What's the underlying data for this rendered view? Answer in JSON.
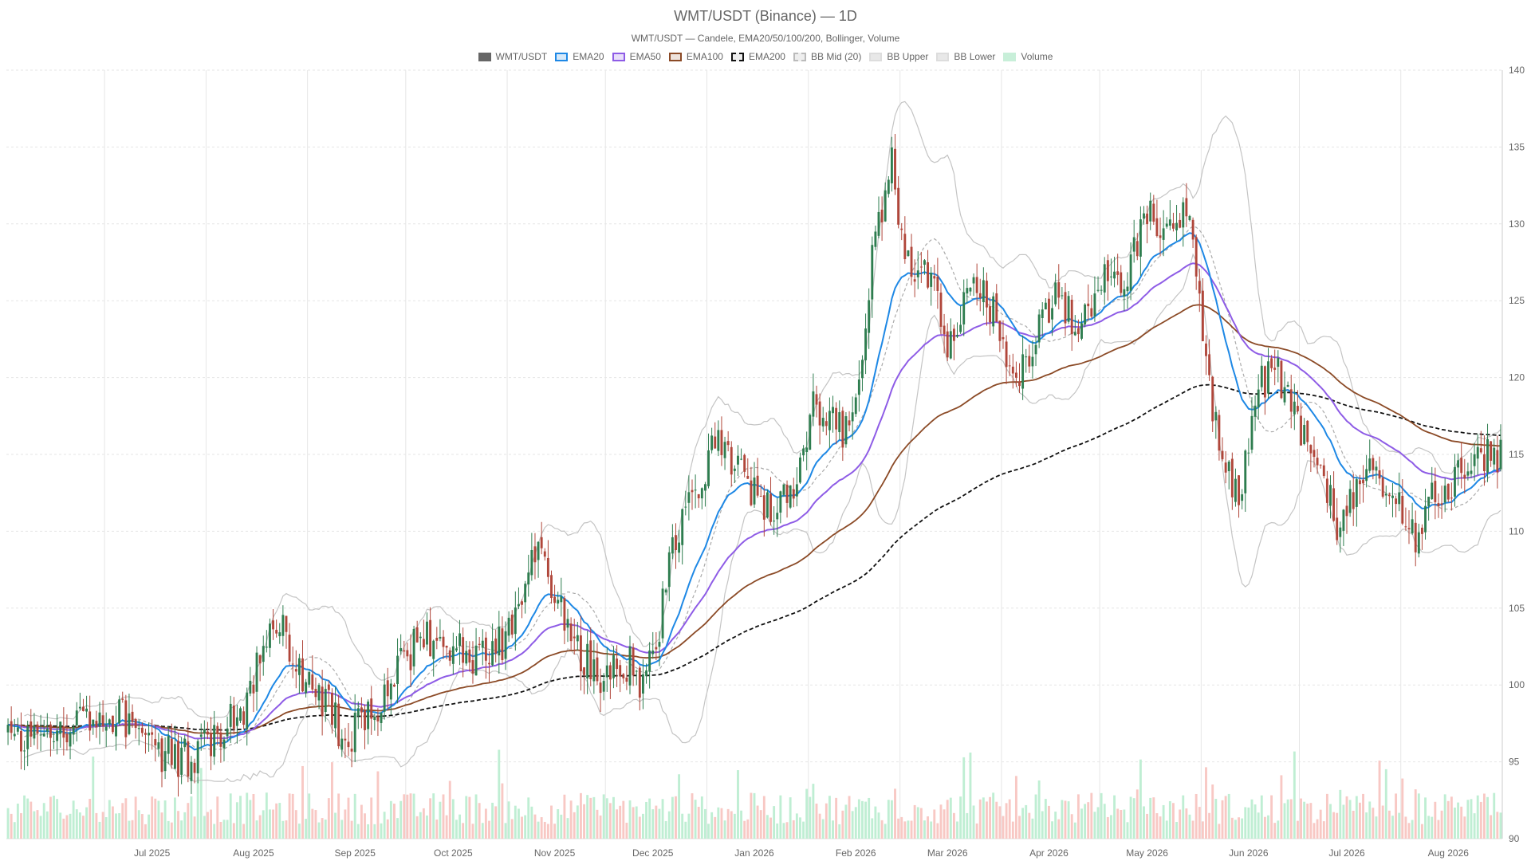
{
  "chart_data": {
    "type": "candlestick",
    "title": "WMT/USDT (Binance) — 1D",
    "subtitle": "WMT/USDT — Candele, EMA20/50/100/200, Bollinger, Volume",
    "legend": [
      {
        "label": "WMT/USDT",
        "color": "#666666",
        "fill": "#666666",
        "dash": false
      },
      {
        "label": "EMA20",
        "color": "#1e88e5",
        "fill": "#d6e9fa",
        "dash": false
      },
      {
        "label": "EMA50",
        "color": "#8e5ce6",
        "fill": "#e8defa",
        "dash": false
      },
      {
        "label": "EMA100",
        "color": "#8b4a26",
        "fill": "#eee3dc",
        "dash": false
      },
      {
        "label": "EMA200",
        "color": "#111111",
        "fill": "#eeeeee",
        "dash": true
      },
      {
        "label": "BB Mid (20)",
        "color": "#bbbbbb",
        "fill": "#eeeeee",
        "dash": true
      },
      {
        "label": "BB Upper",
        "color": "#dddddd",
        "fill": "#e8e8e8",
        "dash": false
      },
      {
        "label": "BB Lower",
        "color": "#dddddd",
        "fill": "#e8e8e8",
        "dash": false
      },
      {
        "label": "Volume",
        "color": "#c8efd9",
        "fill": "#c8efd9",
        "dash": false
      }
    ],
    "colors": {
      "up": "#2e7d4f",
      "down": "#b0463a",
      "ema20": "#1e88e5",
      "ema50": "#8e5ce6",
      "ema100": "#8b4a26",
      "ema200": "#111111",
      "bb_mid": "#aaaaaa",
      "bb_band": "#c4c4c4",
      "vol_up": "#bfeed3",
      "vol_down": "#f8c8c4",
      "grid": "#e6e6e6"
    },
    "y_axis": {
      "min": 90,
      "max": 140,
      "ticks": [
        90,
        95,
        100,
        105,
        110,
        115,
        120,
        125,
        130,
        135,
        140
      ],
      "side": "right"
    },
    "x_axis": {
      "start": "2025-06-01",
      "end": "2026-08-31",
      "month_labels": [
        "Jul 2025",
        "Aug 2025",
        "Sep 2025",
        "Oct 2025",
        "Nov 2025",
        "Dec 2025",
        "Jan 2026",
        "Feb 2026",
        "Mar 2026",
        "Apr 2026",
        "May 2026",
        "Jun 2026",
        "Jul 2026",
        "Aug 2026"
      ],
      "month_label_dates": [
        "2025-07-15",
        "2025-08-15",
        "2025-09-15",
        "2025-10-15",
        "2025-11-15",
        "2025-12-15",
        "2026-01-15",
        "2026-02-15",
        "2026-03-15",
        "2026-04-15",
        "2026-05-15",
        "2026-06-15",
        "2026-07-15",
        "2026-08-15"
      ]
    },
    "grid": true,
    "close_anchors": [
      [
        "2025-06-01",
        97.4
      ],
      [
        "2025-06-06",
        96.0
      ],
      [
        "2025-06-12",
        96.8
      ],
      [
        "2025-06-18",
        97.6
      ],
      [
        "2025-06-26",
        97.2
      ],
      [
        "2025-07-05",
        97.9
      ],
      [
        "2025-07-12",
        97.0
      ],
      [
        "2025-07-18",
        95.5
      ],
      [
        "2025-07-26",
        95.2
      ],
      [
        "2025-08-05",
        97.0
      ],
      [
        "2025-08-12",
        98.5
      ],
      [
        "2025-08-18",
        102.8
      ],
      [
        "2025-08-24",
        103.6
      ],
      [
        "2025-08-30",
        100.0
      ],
      [
        "2025-09-06",
        98.8
      ],
      [
        "2025-09-12",
        96.5
      ],
      [
        "2025-09-20",
        98.0
      ],
      [
        "2025-09-28",
        101.0
      ],
      [
        "2025-10-06",
        103.2
      ],
      [
        "2025-10-14",
        102.5
      ],
      [
        "2025-10-22",
        101.5
      ],
      [
        "2025-10-30",
        102.8
      ],
      [
        "2025-11-06",
        106.5
      ],
      [
        "2025-11-10",
        108.5
      ],
      [
        "2025-11-16",
        106.0
      ],
      [
        "2025-11-22",
        102.0
      ],
      [
        "2025-11-30",
        100.5
      ],
      [
        "2025-12-08",
        101.5
      ],
      [
        "2025-12-12",
        99.8
      ],
      [
        "2025-12-16",
        103.0
      ],
      [
        "2025-12-22",
        109.5
      ],
      [
        "2025-12-28",
        112.5
      ],
      [
        "2026-01-04",
        116.5
      ],
      [
        "2026-01-12",
        113.0
      ],
      [
        "2026-01-20",
        111.5
      ],
      [
        "2026-01-27",
        112.0
      ],
      [
        "2026-02-02",
        119.0
      ],
      [
        "2026-02-06",
        117.0
      ],
      [
        "2026-02-12",
        116.5
      ],
      [
        "2026-02-16",
        120.5
      ],
      [
        "2026-02-20",
        128.0
      ],
      [
        "2026-02-26",
        134.0
      ],
      [
        "2026-03-03",
        127.0
      ],
      [
        "2026-03-09",
        126.5
      ],
      [
        "2026-03-15",
        122.5
      ],
      [
        "2026-03-22",
        126.0
      ],
      [
        "2026-03-29",
        124.5
      ],
      [
        "2026-04-04",
        119.5
      ],
      [
        "2026-04-12",
        123.0
      ],
      [
        "2026-04-18",
        125.5
      ],
      [
        "2026-04-25",
        123.0
      ],
      [
        "2026-05-01",
        127.0
      ],
      [
        "2026-05-08",
        126.0
      ],
      [
        "2026-05-15",
        130.5
      ],
      [
        "2026-05-22",
        129.0
      ],
      [
        "2026-05-27",
        131.0
      ],
      [
        "2026-06-01",
        123.0
      ],
      [
        "2026-06-06",
        115.0
      ],
      [
        "2026-06-12",
        112.5
      ],
      [
        "2026-06-18",
        119.5
      ],
      [
        "2026-06-24",
        120.5
      ],
      [
        "2026-06-30",
        117.0
      ],
      [
        "2026-07-06",
        114.5
      ],
      [
        "2026-07-12",
        110.5
      ],
      [
        "2026-07-18",
        112.5
      ],
      [
        "2026-07-24",
        114.0
      ],
      [
        "2026-07-30",
        112.0
      ],
      [
        "2026-08-05",
        109.0
      ],
      [
        "2026-08-11",
        112.5
      ],
      [
        "2026-08-17",
        113.0
      ],
      [
        "2026-08-23",
        115.0
      ],
      [
        "2026-08-31",
        115.0
      ]
    ]
  }
}
